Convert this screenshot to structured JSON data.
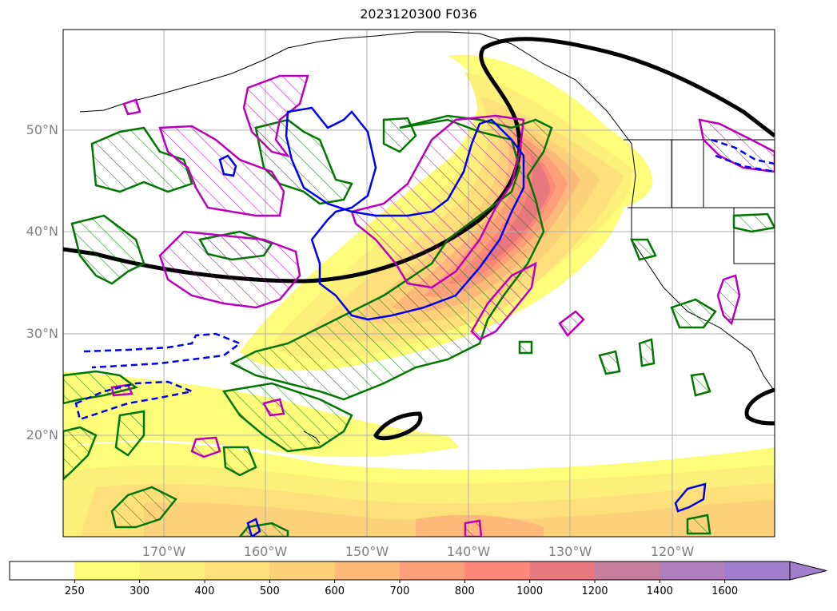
{
  "title": "2023120300 F036",
  "lat_labels": [
    "50°N",
    "40°N",
    "30°N",
    "20°N"
  ],
  "lon_labels": [
    "170°W",
    "160°W",
    "150°W",
    "140°W",
    "130°W",
    "120°W"
  ],
  "colorbar": {
    "levels": [
      "250",
      "300",
      "400",
      "500",
      "600",
      "700",
      "800",
      "1000",
      "1200",
      "1400",
      "1600"
    ],
    "colors": [
      "#ffffff",
      "#fdfd7a",
      "#fdf07a",
      "#fde07a",
      "#fdd07a",
      "#fdb87a",
      "#fda07a",
      "#fd887a",
      "#e8787e",
      "#c47e9c",
      "#b07ebc",
      "#a07ecc"
    ]
  },
  "colors": {
    "jet_contour": "#000000",
    "height_anomaly_positive": "#bb00bb",
    "height_anomaly_negative": "#0000ee",
    "precip_contour": "#007700"
  }
}
